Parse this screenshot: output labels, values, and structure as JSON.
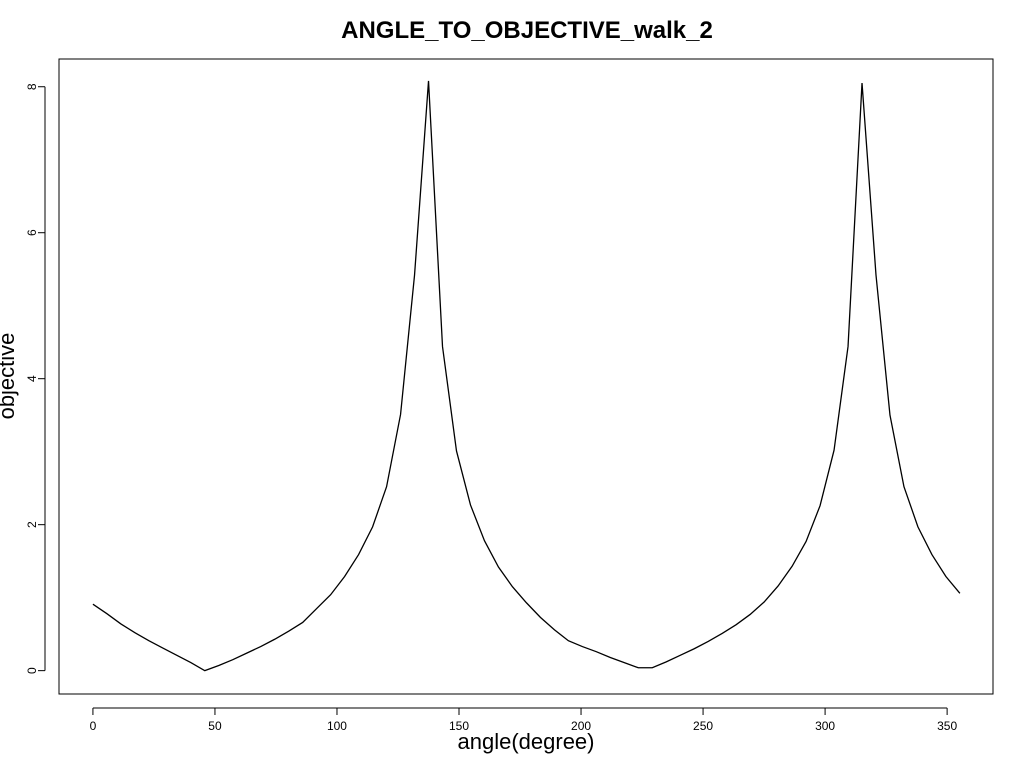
{
  "chart_data": {
    "type": "line",
    "title": "ANGLE_TO_OBJECTIVE_walk_2",
    "x_label": "angle(degree)",
    "y_label": "objective",
    "x": [
      0,
      5.73,
      11.46,
      17.19,
      22.92,
      28.65,
      34.38,
      40.11,
      45.84,
      51.57,
      57.3,
      63.03,
      68.75,
      74.48,
      80.21,
      85.94,
      91.67,
      97.4,
      103.13,
      108.86,
      114.59,
      120.32,
      126.05,
      131.78,
      137.51,
      143.24,
      148.97,
      154.7,
      160.43,
      166.16,
      171.89,
      177.62,
      183.35,
      189.08,
      194.81,
      200.54,
      206.26,
      211.99,
      217.72,
      223.45,
      229.18,
      234.91,
      240.64,
      246.37,
      252.1,
      257.83,
      263.56,
      269.29,
      275.02,
      280.75,
      286.48,
      292.21,
      297.94,
      303.67,
      309.4,
      315.13,
      320.86,
      326.59,
      332.32,
      338.04,
      343.77,
      349.5,
      355.23
    ],
    "series": [
      {
        "color": "#000000",
        "values": [
          0.91,
          0.78,
          0.64,
          0.52,
          0.41,
          0.31,
          0.21,
          0.11,
          0.0,
          0.07,
          0.15,
          0.24,
          0.33,
          0.43,
          0.54,
          0.66,
          0.85,
          1.04,
          1.29,
          1.59,
          1.97,
          2.52,
          3.51,
          5.42,
          8.08,
          4.44,
          3.01,
          2.27,
          1.78,
          1.42,
          1.15,
          0.93,
          0.73,
          0.56,
          0.41,
          0.33,
          0.26,
          0.18,
          0.11,
          0.04,
          0.04,
          0.12,
          0.21,
          0.3,
          0.4,
          0.51,
          0.63,
          0.77,
          0.94,
          1.16,
          1.43,
          1.77,
          2.26,
          3.02,
          4.44,
          8.05,
          5.42,
          3.5,
          2.52,
          1.97,
          1.59,
          1.29,
          1.06
        ]
      }
    ],
    "xlim": [
      -13.9,
      368.8
    ],
    "ylim": [
      -0.32,
      8.38
    ],
    "xticks": [
      0,
      50,
      100,
      150,
      200,
      250,
      300,
      350
    ],
    "yticks": [
      0,
      2,
      4,
      6,
      8
    ]
  }
}
